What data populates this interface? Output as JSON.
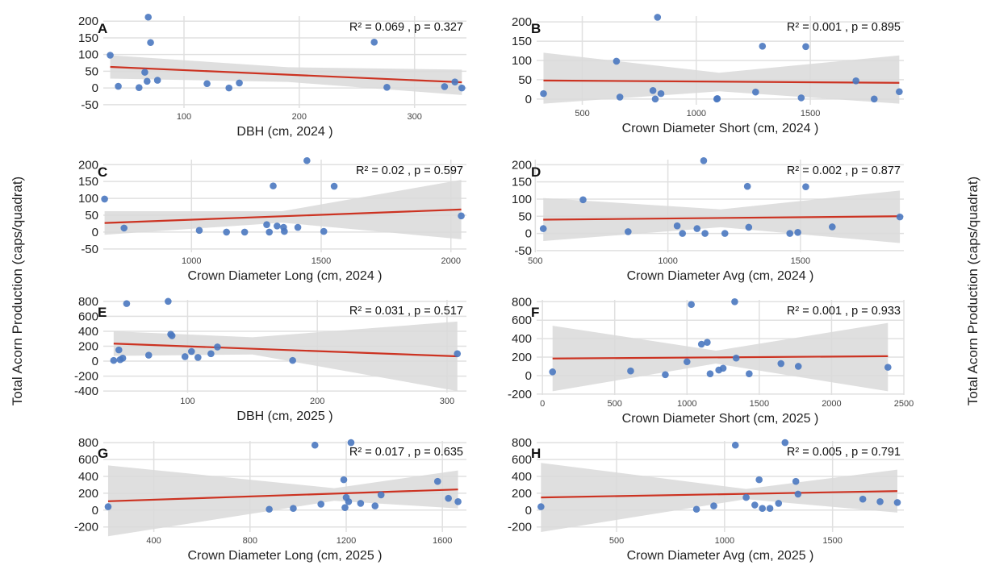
{
  "figure": {
    "shared_ylabel": "Total Acorn Production (caps/quadrat)"
  },
  "colors": {
    "point": "#4a78c0",
    "fit_line": "#cc3322",
    "ci_band": "#d9d9d9",
    "grid": "#e0e0e0"
  },
  "chart_data": [
    {
      "type": "scatter",
      "panel": "A",
      "stat": "R² = 0.069 , p = 0.327",
      "xlabel": "DBH (cm, 2024 )",
      "ylabel": "Total Acorn Production (caps/quadrat)",
      "xlim": [
        30,
        345
      ],
      "ylim": [
        -60,
        215
      ],
      "xticks": [
        100,
        200,
        300
      ],
      "yticks": [
        -50,
        0,
        50,
        100,
        150,
        200
      ],
      "points": [
        [
          36,
          98
        ],
        [
          43,
          5
        ],
        [
          61,
          1
        ],
        [
          66,
          47
        ],
        [
          68,
          20
        ],
        [
          69,
          212
        ],
        [
          71,
          136
        ],
        [
          77,
          23
        ],
        [
          120,
          13
        ],
        [
          139,
          0
        ],
        [
          148,
          15
        ],
        [
          265,
          137
        ],
        [
          276,
          2
        ],
        [
          326,
          4
        ],
        [
          335,
          18
        ],
        [
          341,
          0
        ]
      ],
      "fit": [
        [
          36,
          63
        ],
        [
          341,
          17
        ]
      ],
      "ci_upper": [
        [
          36,
          98
        ],
        [
          190,
          62
        ],
        [
          341,
          55
        ]
      ],
      "ci_lower": [
        [
          36,
          28
        ],
        [
          190,
          18
        ],
        [
          341,
          -21
        ]
      ]
    },
    {
      "type": "scatter",
      "panel": "B",
      "stat": "R² = 0.001 , p = 0.895",
      "xlabel": "Crown Diameter Short (cm, 2024 )",
      "ylabel": "Total Acorn Production (caps/quadrat)",
      "xlim": [
        300,
        1910
      ],
      "ylim": [
        -15,
        215
      ],
      "xticks": [
        500,
        1000,
        1500
      ],
      "yticks": [
        0,
        50,
        100,
        150,
        200
      ],
      "points": [
        [
          330,
          14
        ],
        [
          650,
          98
        ],
        [
          665,
          5
        ],
        [
          810,
          22
        ],
        [
          820,
          0
        ],
        [
          830,
          212
        ],
        [
          845,
          14
        ],
        [
          1090,
          0
        ],
        [
          1092,
          1
        ],
        [
          1260,
          18
        ],
        [
          1290,
          137
        ],
        [
          1460,
          3
        ],
        [
          1480,
          136
        ],
        [
          1700,
          47
        ],
        [
          1780,
          0
        ],
        [
          1890,
          19
        ]
      ],
      "fit": [
        [
          330,
          48
        ],
        [
          1890,
          42
        ]
      ],
      "ci_upper": [
        [
          330,
          120
        ],
        [
          1100,
          68
        ],
        [
          1890,
          113
        ]
      ],
      "ci_lower": [
        [
          330,
          -12
        ],
        [
          1100,
          20
        ],
        [
          1890,
          -12
        ]
      ]
    },
    {
      "type": "scatter",
      "panel": "C",
      "stat": "R² = 0.02 , p = 0.597",
      "xlabel": "Crown Diameter Long (cm, 2024 )",
      "ylabel": "Total Acorn Production (caps/quadrat)",
      "xlim": [
        660,
        2060
      ],
      "ylim": [
        -60,
        215
      ],
      "xticks": [
        1000,
        1500,
        2000
      ],
      "yticks": [
        -50,
        0,
        50,
        100,
        150,
        200
      ],
      "points": [
        [
          665,
          98
        ],
        [
          740,
          12
        ],
        [
          1030,
          5
        ],
        [
          1135,
          0
        ],
        [
          1205,
          0
        ],
        [
          1290,
          22
        ],
        [
          1300,
          0
        ],
        [
          1315,
          137
        ],
        [
          1330,
          18
        ],
        [
          1355,
          14
        ],
        [
          1358,
          2
        ],
        [
          1410,
          14
        ],
        [
          1445,
          212
        ],
        [
          1510,
          2
        ],
        [
          1550,
          136
        ],
        [
          2040,
          48
        ]
      ],
      "fit": [
        [
          665,
          27
        ],
        [
          2040,
          67
        ]
      ],
      "ci_upper": [
        [
          665,
          62
        ],
        [
          1350,
          62
        ],
        [
          2040,
          155
        ]
      ],
      "ci_lower": [
        [
          665,
          -8
        ],
        [
          1350,
          28
        ],
        [
          2040,
          -21
        ]
      ]
    },
    {
      "type": "scatter",
      "panel": "D",
      "stat": "R² = 0.002 , p = 0.877",
      "xlabel": "Crown Diameter Avg (cm, 2024 )",
      "ylabel": "Total Acorn Production (caps/quadrat)",
      "xlim": [
        505,
        1890
      ],
      "ylim": [
        -55,
        215
      ],
      "xticks": [
        500,
        1000,
        1500
      ],
      "yticks": [
        -50,
        0,
        50,
        100,
        150,
        200
      ],
      "points": [
        [
          530,
          14
        ],
        [
          680,
          98
        ],
        [
          850,
          5
        ],
        [
          1035,
          22
        ],
        [
          1055,
          0
        ],
        [
          1110,
          14
        ],
        [
          1135,
          212
        ],
        [
          1140,
          0
        ],
        [
          1215,
          0
        ],
        [
          1300,
          137
        ],
        [
          1305,
          18
        ],
        [
          1460,
          0
        ],
        [
          1490,
          3
        ],
        [
          1520,
          136
        ],
        [
          1620,
          19
        ],
        [
          1875,
          48
        ]
      ],
      "fit": [
        [
          530,
          40
        ],
        [
          1875,
          50
        ]
      ],
      "ci_upper": [
        [
          530,
          103
        ],
        [
          1200,
          70
        ],
        [
          1875,
          125
        ]
      ],
      "ci_lower": [
        [
          530,
          -22
        ],
        [
          1200,
          18
        ],
        [
          1875,
          -28
        ]
      ]
    },
    {
      "type": "scatter",
      "panel": "E",
      "stat": "R² = 0.031 , p = 0.517",
      "xlabel": "DBH (cm, 2025 )",
      "ylabel": "Total Acorn Production (caps/quadrat)",
      "xlim": [
        35,
        315
      ],
      "ylim": [
        -420,
        820
      ],
      "xticks": [
        100,
        200,
        300
      ],
      "yticks": [
        -400,
        -200,
        0,
        200,
        400,
        600,
        800
      ],
      "points": [
        [
          43,
          10
        ],
        [
          47,
          150
        ],
        [
          48,
          20
        ],
        [
          50,
          40
        ],
        [
          53,
          770
        ],
        [
          70,
          80
        ],
        [
          85,
          800
        ],
        [
          87,
          360
        ],
        [
          88,
          340
        ],
        [
          98,
          60
        ],
        [
          103,
          130
        ],
        [
          108,
          50
        ],
        [
          118,
          100
        ],
        [
          123,
          190
        ],
        [
          181,
          10
        ],
        [
          308,
          100
        ]
      ],
      "fit": [
        [
          43,
          235
        ],
        [
          308,
          65
        ]
      ],
      "ci_upper": [
        [
          43,
          400
        ],
        [
          150,
          320
        ],
        [
          308,
          530
        ]
      ],
      "ci_lower": [
        [
          43,
          70
        ],
        [
          150,
          90
        ],
        [
          308,
          -400
        ]
      ]
    },
    {
      "type": "scatter",
      "panel": "F",
      "stat": "R² = 0.001 , p = 0.933",
      "xlabel": "Crown Diameter Short (cm, 2025 )",
      "ylabel": "Total Acorn Production (caps/quadrat)",
      "xlim": [
        -40,
        2500
      ],
      "ylim": [
        -210,
        820
      ],
      "xticks": [
        0,
        500,
        1000,
        1500,
        2000,
        2500
      ],
      "yticks": [
        -200,
        0,
        200,
        400,
        600,
        800
      ],
      "points": [
        [
          70,
          40
        ],
        [
          610,
          50
        ],
        [
          850,
          10
        ],
        [
          1000,
          150
        ],
        [
          1030,
          770
        ],
        [
          1100,
          340
        ],
        [
          1140,
          360
        ],
        [
          1160,
          20
        ],
        [
          1220,
          60
        ],
        [
          1250,
          80
        ],
        [
          1330,
          800
        ],
        [
          1340,
          190
        ],
        [
          1430,
          20
        ],
        [
          1650,
          130
        ],
        [
          1770,
          100
        ],
        [
          2390,
          90
        ]
      ],
      "fit": [
        [
          70,
          185
        ],
        [
          2390,
          210
        ]
      ],
      "ci_upper": [
        [
          70,
          540
        ],
        [
          1200,
          270
        ],
        [
          2390,
          570
        ]
      ],
      "ci_lower": [
        [
          70,
          -170
        ],
        [
          1200,
          130
        ],
        [
          2390,
          -170
        ]
      ]
    },
    {
      "type": "scatter",
      "panel": "G",
      "stat": "R² = 0.017 , p = 0.635",
      "xlabel": "Crown Diameter Long (cm, 2025 )",
      "ylabel": "Total Acorn Production (caps/quadrat)",
      "xlim": [
        190,
        1700
      ],
      "ylim": [
        -260,
        820
      ],
      "xticks": [
        400,
        800,
        1200,
        1600
      ],
      "yticks": [
        -200,
        0,
        200,
        400,
        600,
        800
      ],
      "points": [
        [
          210,
          40
        ],
        [
          880,
          10
        ],
        [
          980,
          20
        ],
        [
          1070,
          770
        ],
        [
          1095,
          70
        ],
        [
          1190,
          360
        ],
        [
          1195,
          30
        ],
        [
          1200,
          150
        ],
        [
          1210,
          100
        ],
        [
          1220,
          800
        ],
        [
          1260,
          80
        ],
        [
          1320,
          50
        ],
        [
          1345,
          180
        ],
        [
          1580,
          340
        ],
        [
          1625,
          140
        ],
        [
          1665,
          100
        ]
      ],
      "fit": [
        [
          210,
          105
        ],
        [
          1665,
          245
        ]
      ],
      "ci_upper": [
        [
          210,
          530
        ],
        [
          1150,
          260
        ],
        [
          1665,
          470
        ]
      ],
      "ci_lower": [
        [
          210,
          -310
        ],
        [
          1150,
          110
        ],
        [
          1665,
          20
        ]
      ]
    },
    {
      "type": "scatter",
      "panel": "H",
      "stat": "R² = 0.005 , p = 0.791",
      "xlabel": "Crown Diameter Avg (cm, 2025 )",
      "ylabel": "Total Acorn Production (caps/quadrat)",
      "xlim": [
        130,
        1830
      ],
      "ylim": [
        -260,
        820
      ],
      "xticks": [
        500,
        1000,
        1500
      ],
      "yticks": [
        -200,
        0,
        200,
        400,
        600,
        800
      ],
      "points": [
        [
          150,
          40
        ],
        [
          870,
          10
        ],
        [
          950,
          50
        ],
        [
          1050,
          770
        ],
        [
          1100,
          150
        ],
        [
          1140,
          60
        ],
        [
          1160,
          360
        ],
        [
          1175,
          20
        ],
        [
          1210,
          20
        ],
        [
          1250,
          80
        ],
        [
          1280,
          800
        ],
        [
          1330,
          340
        ],
        [
          1340,
          190
        ],
        [
          1640,
          130
        ],
        [
          1720,
          100
        ],
        [
          1800,
          90
        ]
      ],
      "fit": [
        [
          150,
          150
        ],
        [
          1800,
          225
        ]
      ],
      "ci_upper": [
        [
          150,
          560
        ],
        [
          1100,
          250
        ],
        [
          1800,
          480
        ]
      ],
      "ci_lower": [
        [
          150,
          -260
        ],
        [
          1100,
          130
        ],
        [
          1800,
          -30
        ]
      ]
    }
  ]
}
